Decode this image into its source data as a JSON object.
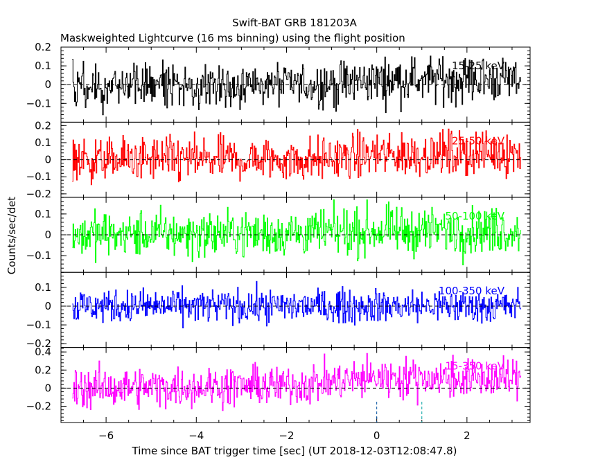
{
  "chart_data": {
    "type": "line",
    "title": "Swift-BAT GRB 181203A",
    "subtitle": "Maskweighted Lightcurve (16 ms binning) using the flight position",
    "xlabel": "Time since BAT trigger time [sec] (UT 2018-12-03T12:08:47.8)",
    "ylabel": "Counts/sec/det",
    "xlim": [
      -7.0,
      3.4
    ],
    "x_ticks": [
      -6,
      -4,
      -2,
      0,
      2
    ],
    "x_start": -6.75,
    "x_end": 3.2,
    "bin_width": 0.016,
    "grid": false,
    "markers": [
      {
        "name": "trigger",
        "x": 0
      },
      {
        "name": "end",
        "x": 1.0
      }
    ],
    "panels": [
      {
        "band": "15-25 keV",
        "color": "#000000",
        "ylim": [
          -0.2,
          0.2
        ],
        "y_ticks": [
          -0.1,
          0,
          0.1,
          0.2
        ],
        "y_tick_labels": [
          "−0.1",
          "0",
          "0.1",
          "0.2"
        ],
        "mean": [
          [
            -6.75,
            0.0
          ],
          [
            -1.0,
            0.0
          ],
          [
            0.0,
            0.025
          ],
          [
            3.2,
            0.03
          ]
        ],
        "amplitude": 0.06
      },
      {
        "band": "25-50 keV",
        "color": "#ff0000",
        "ylim": [
          -0.22,
          0.22
        ],
        "y_ticks": [
          -0.2,
          -0.1,
          0,
          0.1,
          0.2
        ],
        "y_tick_labels": [
          "−0.2",
          "−0.1",
          "0",
          "0.1",
          "0.2"
        ],
        "mean": [
          [
            -6.75,
            0.0
          ],
          [
            -1.5,
            0.0
          ],
          [
            0.0,
            0.03
          ],
          [
            3.2,
            0.04
          ]
        ],
        "amplitude": 0.065
      },
      {
        "band": "50-100 keV",
        "color": "#00ff00",
        "ylim": [
          -0.18,
          0.18
        ],
        "y_ticks": [
          -0.1,
          0,
          0.1
        ],
        "y_tick_labels": [
          "−0.1",
          "0",
          "0.1"
        ],
        "mean": [
          [
            -6.75,
            0.0
          ],
          [
            -1.0,
            0.01
          ],
          [
            0.0,
            0.02
          ],
          [
            3.2,
            0.02
          ]
        ],
        "amplitude": 0.055
      },
      {
        "band": "100-350 keV",
        "color": "#0000ff",
        "ylim": [
          -0.22,
          0.18
        ],
        "y_ticks": [
          -0.2,
          -0.1,
          0,
          0.1
        ],
        "y_tick_labels": [
          "−0.2",
          "−0.1",
          "0",
          "0.1"
        ],
        "mean": [
          [
            -6.75,
            0.0
          ],
          [
            3.2,
            0.0
          ]
        ],
        "amplitude": 0.045
      },
      {
        "band": "15-350 keV",
        "color": "#ff00ff",
        "ylim": [
          -0.38,
          0.45
        ],
        "y_ticks": [
          -0.2,
          0,
          0.2,
          0.4
        ],
        "y_tick_labels": [
          "−0.2",
          "0",
          "0.2",
          "0.4"
        ],
        "mean": [
          [
            -6.75,
            0.0
          ],
          [
            -2.0,
            0.03
          ],
          [
            0.0,
            0.12
          ],
          [
            3.2,
            0.1
          ]
        ],
        "amplitude": 0.11
      }
    ]
  }
}
